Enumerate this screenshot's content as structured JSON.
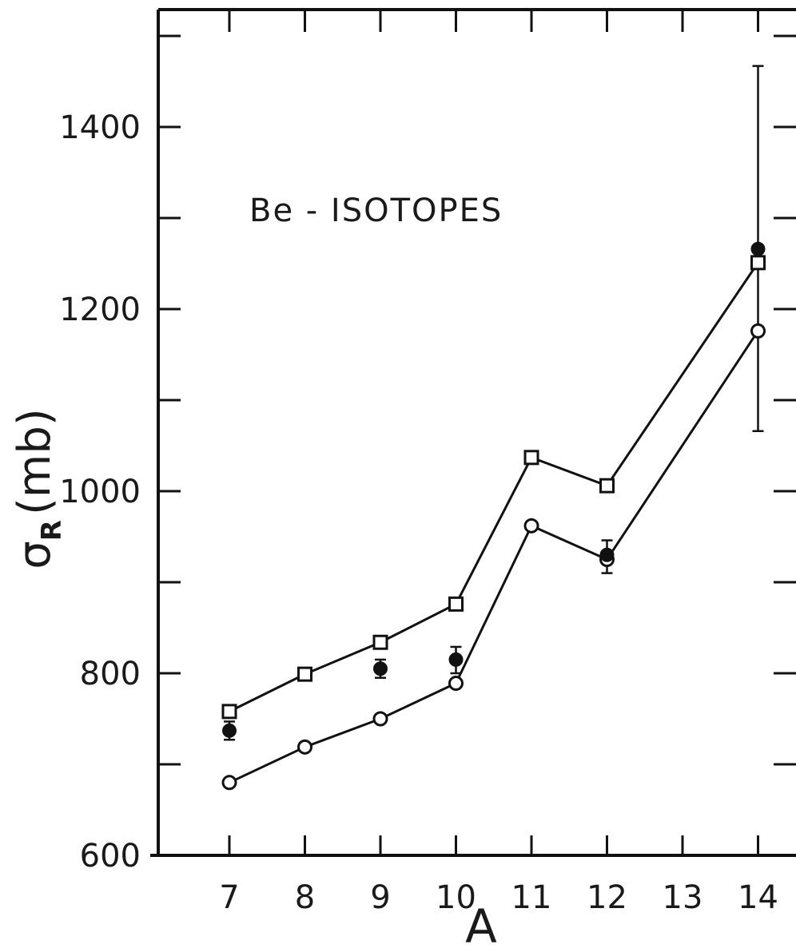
{
  "chart_data": {
    "type": "line",
    "title": "",
    "annotation": "Be - ISOTOPES",
    "xlabel": "A",
    "ylabel": {
      "symbol": "σ",
      "subscript": "R",
      "unit": "(mb)"
    },
    "x_ticks": [
      "7",
      "8",
      "9",
      "10",
      "11",
      "12",
      "13",
      "14"
    ],
    "y_ticks": [
      "600",
      "800",
      "1000",
      "1200",
      "1400"
    ],
    "xlim": [
      6,
      14.5
    ],
    "ylim": [
      600,
      1510
    ],
    "grid": false,
    "series": [
      {
        "marker": "open-square",
        "connected": true,
        "x": [
          7,
          8,
          9,
          10,
          11,
          12,
          14
        ],
        "y": [
          758,
          799,
          834,
          876,
          1037,
          1006,
          1251
        ]
      },
      {
        "marker": "open-circle",
        "connected": true,
        "x": [
          7,
          8,
          9,
          10,
          11,
          12,
          14
        ],
        "y": [
          680,
          719,
          750,
          789,
          962,
          925,
          1176
        ]
      },
      {
        "marker": "filled-circle",
        "connected": false,
        "x": [
          7,
          9,
          10,
          12,
          14
        ],
        "y": [
          737,
          805,
          815,
          930,
          1266
        ],
        "error_low": [
          727,
          795,
          800,
          910,
          1066
        ],
        "error_high": [
          747,
          815,
          829,
          946,
          1467
        ]
      }
    ]
  }
}
